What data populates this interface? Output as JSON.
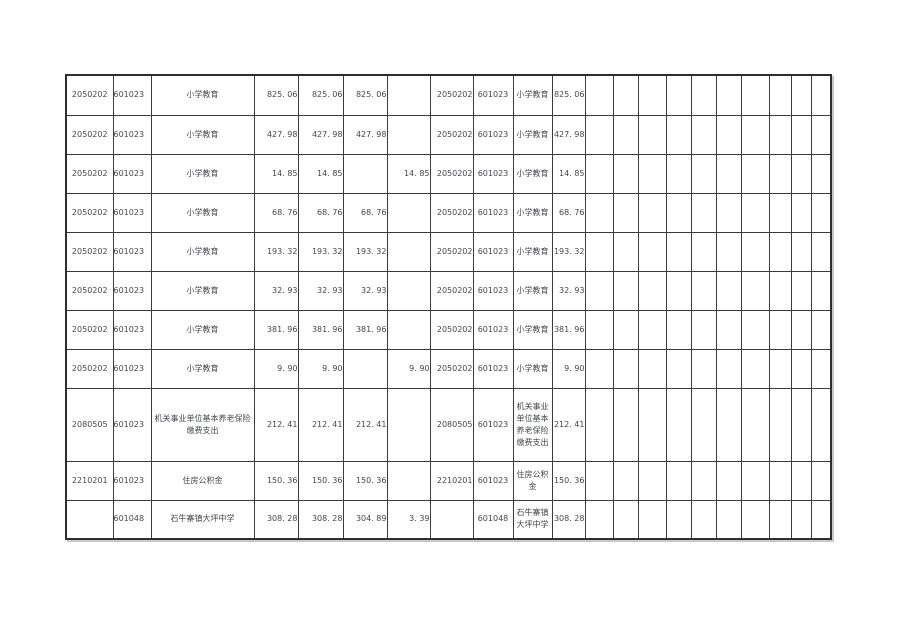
{
  "page": {
    "background": "#ffffff",
    "description_note": ""
  },
  "colors": {
    "grid_border": "#3b3b3b",
    "outer_border": "#2e2e2e",
    "text": "#44474d",
    "cell_background": "#ffffff"
  },
  "table": {
    "column_count": 21,
    "rows": [
      [
        "2050202",
        "601023",
        "小学教育",
        "825. 06",
        "825. 06",
        "825. 06",
        "",
        "2050202",
        "601023",
        "小学教育",
        "825. 06",
        "",
        "",
        "",
        "",
        "",
        "",
        "",
        "",
        "",
        ""
      ],
      [
        "2050202",
        "601023",
        "小学教育",
        "427. 98",
        "427. 98",
        "427. 98",
        "",
        "2050202",
        "601023",
        "小学教育",
        "427. 98",
        "",
        "",
        "",
        "",
        "",
        "",
        "",
        "",
        "",
        ""
      ],
      [
        "2050202",
        "601023",
        "小学教育",
        "14. 85",
        "14. 85",
        "",
        "14. 85",
        "2050202",
        "601023",
        "小学教育",
        "14. 85",
        "",
        "",
        "",
        "",
        "",
        "",
        "",
        "",
        "",
        ""
      ],
      [
        "2050202",
        "601023",
        "小学教育",
        "68. 76",
        "68. 76",
        "68. 76",
        "",
        "2050202",
        "601023",
        "小学教育",
        "68. 76",
        "",
        "",
        "",
        "",
        "",
        "",
        "",
        "",
        "",
        ""
      ],
      [
        "2050202",
        "601023",
        "小学教育",
        "193. 32",
        "193. 32",
        "193. 32",
        "",
        "2050202",
        "601023",
        "小学教育",
        "193. 32",
        "",
        "",
        "",
        "",
        "",
        "",
        "",
        "",
        "",
        ""
      ],
      [
        "2050202",
        "601023",
        "小学教育",
        "32. 93",
        "32. 93",
        "32. 93",
        "",
        "2050202",
        "601023",
        "小学教育",
        "32. 93",
        "",
        "",
        "",
        "",
        "",
        "",
        "",
        "",
        "",
        ""
      ],
      [
        "2050202",
        "601023",
        "小学教育",
        "381. 96",
        "381. 96",
        "381. 96",
        "",
        "2050202",
        "601023",
        "小学教育",
        "381. 96",
        "",
        "",
        "",
        "",
        "",
        "",
        "",
        "",
        "",
        ""
      ],
      [
        "2050202",
        "601023",
        "小学教育",
        "9. 90",
        "9. 90",
        "",
        "9. 90",
        "2050202",
        "601023",
        "小学教育",
        "9. 90",
        "",
        "",
        "",
        "",
        "",
        "",
        "",
        "",
        "",
        ""
      ],
      [
        "2080505",
        "601023",
        "机关事业单位基本养老保险缴费支出",
        "212. 41",
        "212. 41",
        "212. 41",
        "",
        "2080505",
        "601023",
        "机关事业单位基本养老保险缴费支出",
        "212. 41",
        "",
        "",
        "",
        "",
        "",
        "",
        "",
        "",
        "",
        ""
      ],
      [
        "2210201",
        "601023",
        "住房公积金",
        "150. 36",
        "150. 36",
        "150. 36",
        "",
        "2210201",
        "601023",
        "住房公积金",
        "150. 36",
        "",
        "",
        "",
        "",
        "",
        "",
        "",
        "",
        "",
        ""
      ],
      [
        "",
        "601048",
        "石牛寨镇大坪中学",
        "308. 28",
        "308. 28",
        "304. 89",
        "3. 39",
        "",
        "601048",
        "石牛寨镇大坪中学",
        "308. 28",
        "",
        "",
        "",
        "",
        "",
        "",
        "",
        "",
        "",
        ""
      ]
    ]
  }
}
